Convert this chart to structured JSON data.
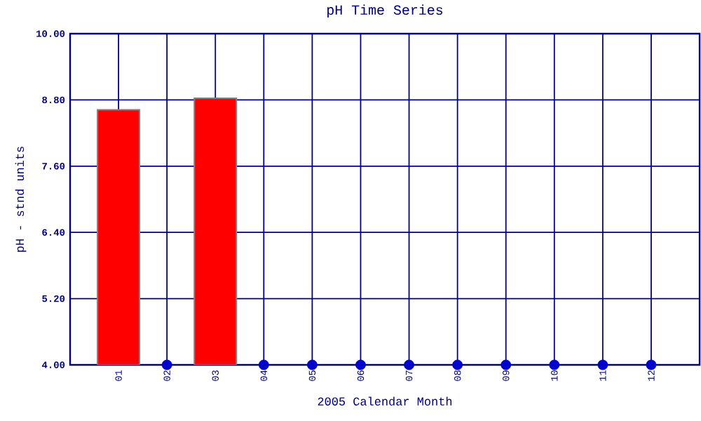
{
  "chart_data": {
    "type": "bar",
    "title": "pH Time Series",
    "xlabel": "2005 Calendar Month",
    "ylabel": "pH - stnd units",
    "categories": [
      "01",
      "02",
      "03",
      "04",
      "05",
      "06",
      "07",
      "08",
      "09",
      "10",
      "11",
      "12"
    ],
    "series": [
      {
        "color": "#ff0000",
        "values": [
          8.62,
          null,
          8.83,
          null,
          null,
          null,
          null,
          null,
          null,
          null,
          null,
          null
        ]
      },
      {
        "type": "scatter",
        "color": "#0000cc",
        "marker": "circle",
        "values": [
          null,
          4.0,
          null,
          4.0,
          4.0,
          4.0,
          4.0,
          4.0,
          4.0,
          4.0,
          4.0,
          4.0
        ]
      }
    ],
    "ylim": [
      4.0,
      10.0
    ],
    "yticks": [
      {
        "value": 4.0,
        "label": "4.00"
      },
      {
        "value": 5.2,
        "label": "5.20"
      },
      {
        "value": 6.4,
        "label": "6.40"
      },
      {
        "value": 7.6,
        "label": "7.60"
      },
      {
        "value": 8.8,
        "label": "8.80"
      },
      {
        "value": 10.0,
        "label": "10.00"
      }
    ],
    "grid": true
  }
}
